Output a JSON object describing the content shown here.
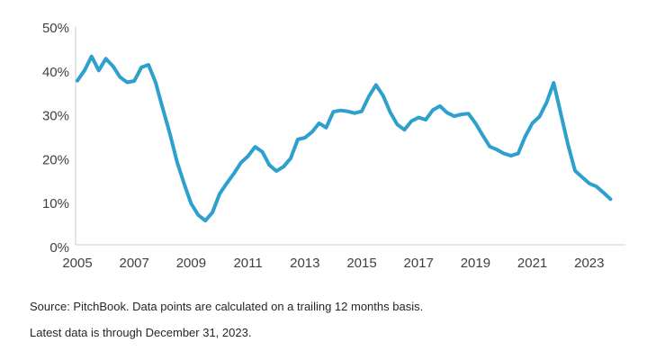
{
  "chart_data": {
    "type": "line",
    "title": "",
    "xlabel": "",
    "ylabel": "",
    "frequency": "quarterly",
    "x_start": "2005 Q1",
    "x_end": "2023 Q4",
    "series": [
      {
        "name": "trailing-12-month-percentage",
        "values": [
          38.0,
          40.3,
          43.5,
          40.3,
          43.0,
          41.3,
          38.8,
          37.6,
          37.9,
          41.0,
          41.6,
          37.6,
          31.7,
          26.0,
          19.6,
          14.6,
          10.0,
          7.4,
          6.1,
          8.0,
          12.2,
          14.6,
          16.8,
          19.3,
          20.8,
          22.9,
          21.8,
          18.8,
          17.4,
          18.4,
          20.3,
          24.6,
          25.0,
          26.3,
          28.3,
          27.3,
          30.9,
          31.2,
          31.0,
          30.6,
          31.0,
          34.4,
          37.0,
          34.6,
          30.8,
          28.0,
          26.8,
          28.8,
          29.6,
          29.1,
          31.3,
          32.2,
          30.7,
          29.9,
          30.3,
          30.5,
          28.3,
          25.6,
          23.0,
          22.3,
          21.4,
          20.9,
          21.4,
          25.3,
          28.3,
          29.8,
          33.0,
          37.5,
          30.5,
          23.5,
          17.5,
          16.0,
          14.6,
          13.9,
          12.5,
          11.0
        ]
      }
    ],
    "ylim": [
      0,
      50
    ],
    "y_tick_step": 10,
    "y_tick_labels": [
      "0%",
      "10%",
      "20%",
      "30%",
      "40%",
      "50%"
    ],
    "x_tick_years": [
      2005,
      2007,
      2009,
      2011,
      2013,
      2015,
      2017,
      2019,
      2021,
      2023
    ],
    "grid": false,
    "legend": "none"
  },
  "colors": {
    "line": "#2da0cd",
    "axis": "#cdcdcd",
    "tick_text": "#404040",
    "footnote_text": "#262626",
    "background": "#ffffff"
  },
  "footnotes": {
    "line1": "Source: PitchBook. Data points are calculated on a trailing 12 months basis.",
    "line2": "Latest data is through December 31, 2023."
  }
}
